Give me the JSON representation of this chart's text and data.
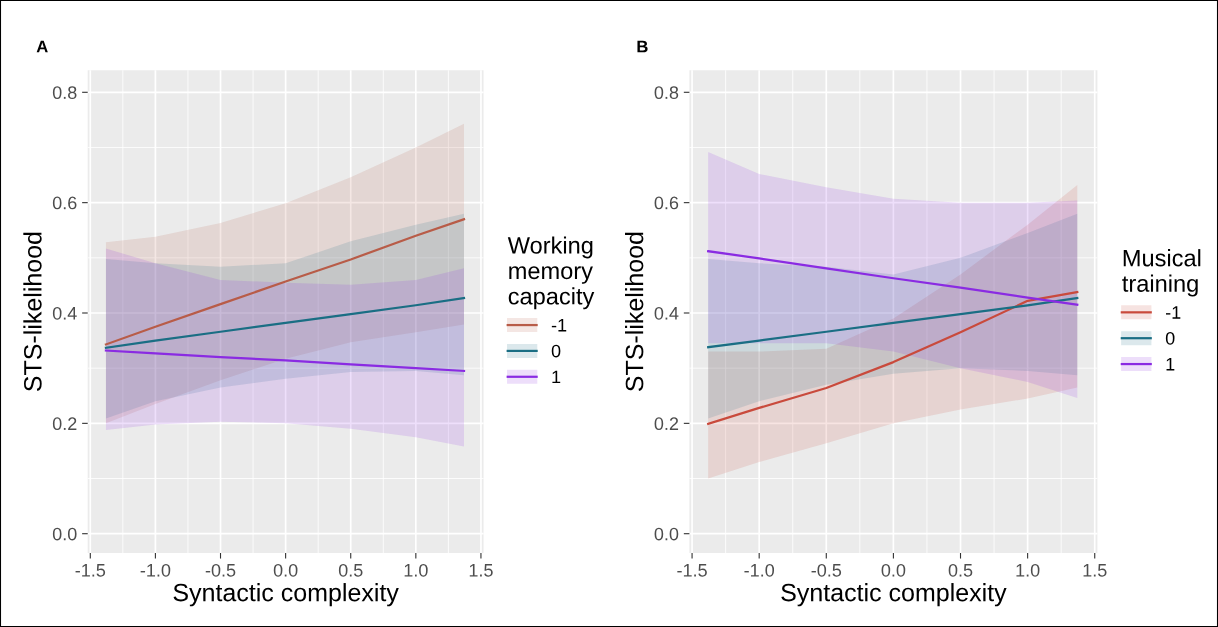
{
  "chart_data": [
    {
      "type": "line",
      "title": "A",
      "xlabel": "Syntactic complexity",
      "ylabel": "STS-likelihood",
      "legend_title": "Working\nmemory\ncapacity",
      "legend": "right",
      "grid": true,
      "x": [
        -1.38,
        -1.0,
        -0.5,
        0.0,
        0.5,
        1.0,
        1.37
      ],
      "xlim": [
        -1.52,
        1.52
      ],
      "xticks": [
        {
          "value": -1.5,
          "label": "-1.5"
        },
        {
          "value": -1.0,
          "label": "-1.0"
        },
        {
          "value": -0.5,
          "label": "-0.5"
        },
        {
          "value": 0,
          "label": "0.0"
        },
        {
          "value": 0.5,
          "label": "0.5"
        },
        {
          "value": 1,
          "label": "1.0"
        },
        {
          "value": 1.5,
          "label": "1.5"
        }
      ],
      "ylim": [
        -0.035,
        0.84
      ],
      "yticks": [
        {
          "value": 0,
          "label": "0.0"
        },
        {
          "value": 0.2,
          "label": "0.2"
        },
        {
          "value": 0.4,
          "label": "0.4"
        },
        {
          "value": 0.6,
          "label": "0.6"
        },
        {
          "value": 0.8,
          "label": "0.8"
        }
      ],
      "series": [
        {
          "name": "-1",
          "color": "#b85c48",
          "values": [
            0.343,
            0.375,
            0.416,
            0.457,
            0.497,
            0.54,
            0.57
          ],
          "lower": [
            0.2,
            0.235,
            0.278,
            0.317,
            0.347,
            0.365,
            0.379
          ],
          "upper": [
            0.528,
            0.538,
            0.563,
            0.599,
            0.646,
            0.7,
            0.743
          ]
        },
        {
          "name": "0",
          "color": "#1a6e84",
          "values": [
            0.337,
            0.35,
            0.366,
            0.382,
            0.398,
            0.414,
            0.427
          ],
          "lower": [
            0.209,
            0.24,
            0.265,
            0.281,
            0.293,
            0.295,
            0.287
          ],
          "upper": [
            0.498,
            0.49,
            0.484,
            0.49,
            0.53,
            0.56,
            0.58
          ]
        },
        {
          "name": "1",
          "color": "#8a2be2",
          "values": [
            0.332,
            0.327,
            0.32,
            0.314,
            0.307,
            0.3,
            0.295
          ],
          "lower": [
            0.188,
            0.198,
            0.203,
            0.2,
            0.19,
            0.175,
            0.158
          ],
          "upper": [
            0.517,
            0.49,
            0.46,
            0.455,
            0.451,
            0.46,
            0.481
          ]
        }
      ]
    },
    {
      "type": "line",
      "title": "B",
      "xlabel": "Syntactic complexity",
      "ylabel": "STS-likelihood",
      "legend_title": "Musical\ntraining",
      "legend": "right",
      "grid": true,
      "x": [
        -1.38,
        -1.0,
        -0.5,
        0.0,
        0.5,
        1.0,
        1.37
      ],
      "xlim": [
        -1.52,
        1.52
      ],
      "xticks": [
        {
          "value": -1.5,
          "label": "-1.5"
        },
        {
          "value": -1.0,
          "label": "-1.0"
        },
        {
          "value": -0.5,
          "label": "-0.5"
        },
        {
          "value": 0,
          "label": "0.0"
        },
        {
          "value": 0.5,
          "label": "0.5"
        },
        {
          "value": 1,
          "label": "1.0"
        },
        {
          "value": 1.5,
          "label": "1.5"
        }
      ],
      "ylim": [
        -0.035,
        0.84
      ],
      "yticks": [
        {
          "value": 0,
          "label": "0.0"
        },
        {
          "value": 0.2,
          "label": "0.2"
        },
        {
          "value": 0.4,
          "label": "0.4"
        },
        {
          "value": 0.6,
          "label": "0.6"
        },
        {
          "value": 0.8,
          "label": "0.8"
        }
      ],
      "series": [
        {
          "name": "-1",
          "color": "#c94a3c",
          "values": [
            0.199,
            0.228,
            0.264,
            0.311,
            0.365,
            0.422,
            0.438
          ],
          "lower": [
            0.1,
            0.13,
            0.164,
            0.2,
            0.225,
            0.245,
            0.265
          ],
          "upper": [
            0.33,
            0.33,
            0.335,
            0.39,
            0.47,
            0.56,
            0.632
          ]
        },
        {
          "name": "0",
          "color": "#1a6e84",
          "values": [
            0.338,
            0.35,
            0.366,
            0.382,
            0.398,
            0.414,
            0.427
          ],
          "lower": [
            0.209,
            0.24,
            0.27,
            0.29,
            0.3,
            0.295,
            0.287
          ],
          "upper": [
            0.498,
            0.49,
            0.484,
            0.47,
            0.5,
            0.545,
            0.58
          ]
        },
        {
          "name": "1",
          "color": "#8a2be2",
          "values": [
            0.512,
            0.499,
            0.481,
            0.463,
            0.446,
            0.428,
            0.415
          ],
          "lower": [
            0.345,
            0.345,
            0.345,
            0.33,
            0.3,
            0.275,
            0.246
          ],
          "upper": [
            0.692,
            0.652,
            0.628,
            0.607,
            0.6,
            0.6,
            0.604
          ]
        }
      ]
    }
  ]
}
